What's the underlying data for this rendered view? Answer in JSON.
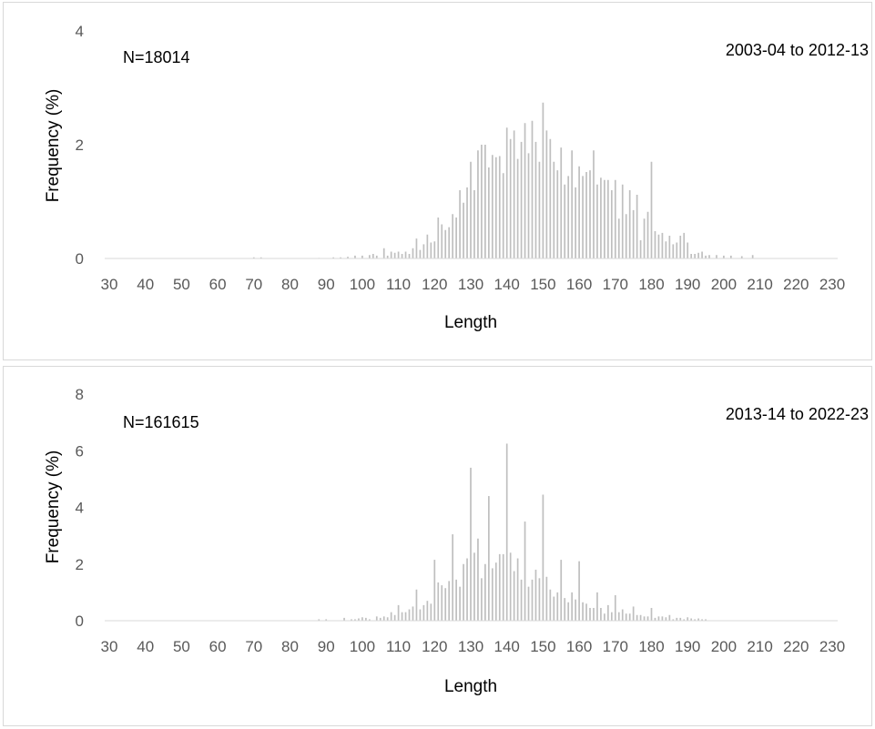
{
  "chart_data": [
    {
      "type": "bar",
      "xlabel": "Length",
      "ylabel": "Frequency (%)",
      "ylim": [
        0,
        4
      ],
      "yticks": [
        "0",
        "2",
        "4"
      ],
      "xlim": [
        30,
        230
      ],
      "xticks": [
        "30",
        "40",
        "50",
        "60",
        "70",
        "80",
        "90",
        "100",
        "110",
        "120",
        "130",
        "140",
        "150",
        "160",
        "170",
        "180",
        "190",
        "200",
        "210",
        "220",
        "230"
      ],
      "annotation_left": "N=18014",
      "annotation_right": "2003-04 to 2012-13",
      "bar_color": "#bfbfbf",
      "x": [
        70,
        72,
        88,
        92,
        94,
        96,
        98,
        100,
        102,
        103,
        104,
        106,
        107,
        108,
        109,
        110,
        111,
        112,
        113,
        114,
        115,
        116,
        117,
        118,
        119,
        120,
        121,
        122,
        123,
        124,
        125,
        126,
        127,
        128,
        129,
        130,
        131,
        132,
        133,
        134,
        135,
        136,
        137,
        138,
        139,
        140,
        141,
        142,
        143,
        144,
        145,
        146,
        147,
        148,
        149,
        150,
        151,
        152,
        153,
        154,
        155,
        156,
        157,
        158,
        159,
        160,
        161,
        162,
        163,
        164,
        165,
        166,
        167,
        168,
        169,
        170,
        171,
        172,
        173,
        174,
        175,
        176,
        177,
        178,
        179,
        180,
        181,
        182,
        183,
        184,
        185,
        186,
        187,
        188,
        189,
        190,
        191,
        192,
        193,
        194,
        195,
        196,
        198,
        200,
        202,
        205,
        208
      ],
      "values": [
        0.02,
        0.02,
        0.01,
        0.02,
        0.02,
        0.03,
        0.05,
        0.05,
        0.06,
        0.08,
        0.05,
        0.18,
        0.05,
        0.12,
        0.1,
        0.12,
        0.08,
        0.12,
        0.08,
        0.18,
        0.35,
        0.15,
        0.25,
        0.42,
        0.28,
        0.3,
        0.72,
        0.6,
        0.5,
        0.55,
        0.78,
        0.72,
        1.2,
        0.98,
        1.25,
        1.7,
        1.2,
        1.9,
        2.0,
        2.0,
        1.6,
        1.82,
        1.78,
        1.8,
        1.5,
        2.3,
        2.1,
        2.25,
        1.75,
        2.05,
        2.38,
        1.85,
        2.42,
        2.05,
        1.7,
        2.74,
        2.25,
        2.1,
        1.7,
        1.55,
        1.95,
        1.3,
        1.45,
        1.9,
        1.25,
        1.62,
        1.45,
        1.52,
        1.55,
        1.9,
        1.3,
        1.42,
        1.38,
        1.38,
        1.2,
        1.38,
        0.7,
        1.3,
        0.78,
        1.2,
        0.85,
        1.12,
        0.32,
        0.7,
        0.82,
        1.7,
        0.48,
        0.42,
        0.45,
        0.3,
        0.4,
        0.25,
        0.28,
        0.4,
        0.45,
        0.28,
        0.08,
        0.08,
        0.1,
        0.12,
        0.05,
        0.06,
        0.06,
        0.05,
        0.05,
        0.04,
        0.06
      ]
    },
    {
      "type": "bar",
      "xlabel": "Length",
      "ylabel": "Frequency (%)",
      "ylim": [
        0,
        8
      ],
      "yticks": [
        "0",
        "2",
        "4",
        "6",
        "8"
      ],
      "xlim": [
        30,
        230
      ],
      "xticks": [
        "30",
        "40",
        "50",
        "60",
        "70",
        "80",
        "90",
        "100",
        "110",
        "120",
        "130",
        "140",
        "150",
        "160",
        "170",
        "180",
        "190",
        "200",
        "210",
        "220",
        "230"
      ],
      "annotation_left": "N=161615",
      "annotation_right": "2013-14 to 2022-23",
      "bar_color": "#bfbfbf",
      "x": [
        88,
        90,
        95,
        97,
        98,
        99,
        100,
        101,
        102,
        104,
        105,
        106,
        107,
        108,
        109,
        110,
        111,
        112,
        113,
        114,
        115,
        116,
        117,
        118,
        119,
        120,
        121,
        122,
        123,
        124,
        125,
        126,
        127,
        128,
        129,
        130,
        131,
        132,
        133,
        134,
        135,
        136,
        137,
        138,
        139,
        140,
        141,
        142,
        143,
        144,
        145,
        146,
        147,
        148,
        149,
        150,
        151,
        152,
        153,
        154,
        155,
        156,
        157,
        158,
        159,
        160,
        161,
        162,
        163,
        164,
        165,
        166,
        167,
        168,
        169,
        170,
        171,
        172,
        173,
        174,
        175,
        176,
        177,
        178,
        179,
        180,
        181,
        182,
        183,
        184,
        185,
        186,
        187,
        188,
        189,
        190,
        191,
        192,
        193,
        194,
        195
      ],
      "values": [
        0.05,
        0.05,
        0.1,
        0.05,
        0.05,
        0.08,
        0.12,
        0.1,
        0.05,
        0.15,
        0.1,
        0.15,
        0.12,
        0.3,
        0.2,
        0.55,
        0.3,
        0.3,
        0.4,
        0.5,
        1.1,
        0.4,
        0.55,
        0.7,
        0.6,
        2.15,
        1.35,
        1.25,
        1.15,
        1.4,
        3.05,
        1.45,
        1.2,
        2.0,
        2.2,
        5.4,
        2.4,
        2.9,
        1.5,
        2.0,
        4.4,
        1.85,
        2.05,
        2.35,
        2.35,
        6.25,
        2.4,
        1.75,
        2.2,
        1.45,
        3.5,
        1.2,
        1.45,
        1.8,
        1.5,
        4.45,
        1.55,
        1.1,
        0.85,
        1.0,
        2.15,
        0.8,
        0.65,
        1.0,
        0.75,
        2.1,
        0.65,
        0.6,
        0.45,
        0.45,
        1.0,
        0.45,
        0.25,
        0.55,
        0.3,
        0.9,
        0.3,
        0.4,
        0.25,
        0.25,
        0.5,
        0.2,
        0.2,
        0.15,
        0.15,
        0.45,
        0.1,
        0.15,
        0.15,
        0.12,
        0.2,
        0.05,
        0.1,
        0.1,
        0.05,
        0.12,
        0.08,
        0.05,
        0.08,
        0.05,
        0.05
      ]
    }
  ]
}
